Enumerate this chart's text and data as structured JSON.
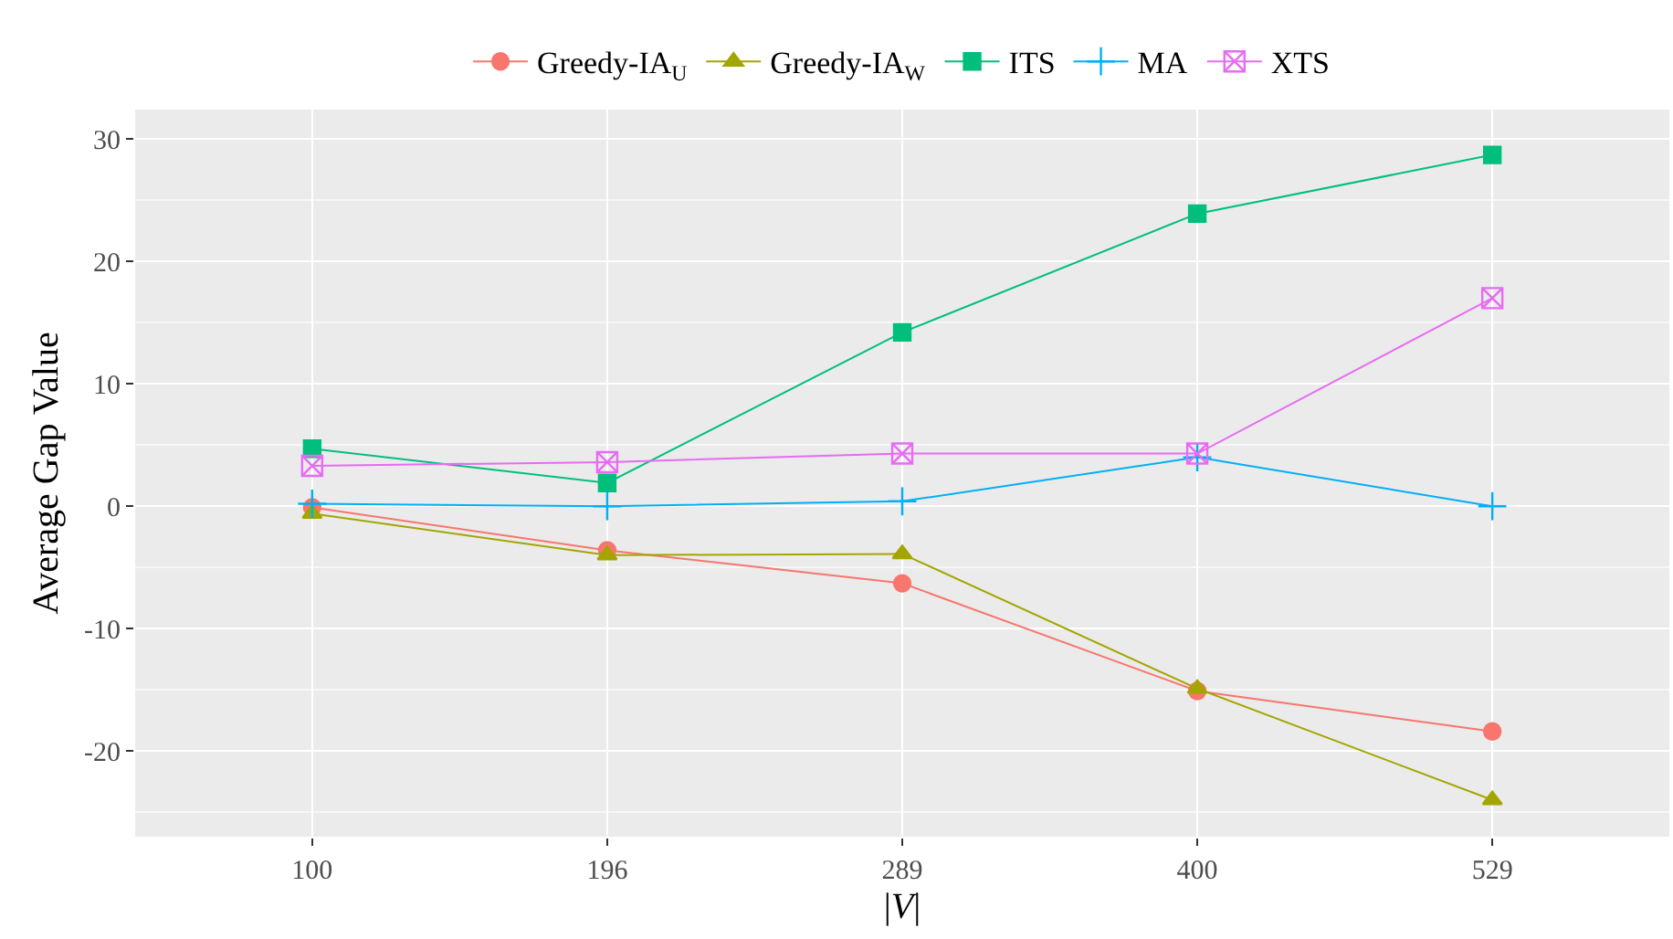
{
  "chart_data": {
    "type": "line",
    "xlabel": "|V|",
    "ylabel": "Average Gap Value",
    "categories": [
      "100",
      "196",
      "289",
      "400",
      "529"
    ],
    "series": [
      {
        "name": "Greedy-IA$_{U}$",
        "color": "#f8766d",
        "marker": "circle",
        "values": [
          -0.1,
          -3.6,
          -6.3,
          -15.1,
          -18.4
        ]
      },
      {
        "name": "Greedy-IA$_{W}$",
        "color": "#a3a500",
        "marker": "triangle",
        "values": [
          -0.6,
          -4.0,
          -3.9,
          -14.9,
          -24.0
        ]
      },
      {
        "name": "ITS",
        "color": "#00bf7d",
        "marker": "square",
        "values": [
          4.7,
          1.9,
          14.2,
          23.9,
          28.7
        ]
      },
      {
        "name": "MA",
        "color": "#00b0f6",
        "marker": "cross",
        "values": [
          0.2,
          0,
          0.4,
          4.0,
          0
        ]
      },
      {
        "name": "XTS",
        "color": "#e76bf3",
        "marker": "cross",
        "values": [
          3.3,
          3.6,
          4.3,
          4.3,
          17.0
        ]
      }
    ],
    "ylim": [
      -27,
      32.4
    ],
    "yticks": [
      -20,
      -10,
      0,
      10,
      20,
      30
    ],
    "grid": true,
    "legend": "top",
    "line_style": "solid"
  }
}
